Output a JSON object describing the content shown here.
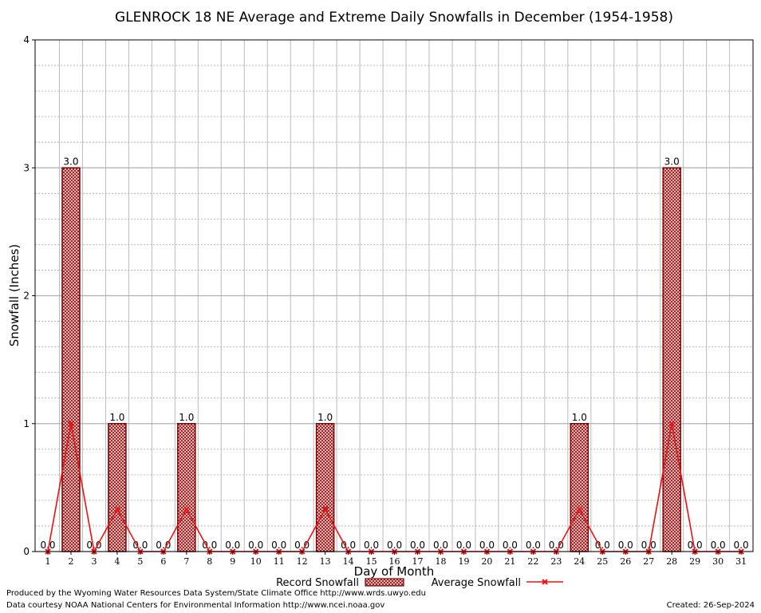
{
  "chart_data": {
    "type": "bar",
    "title": "GLENROCK 18 NE Average and Extreme Daily Snowfalls in December (1954-1958)",
    "xlabel": "Day of Month",
    "ylabel": "Snowfall (Inches)",
    "ylim": [
      0,
      4
    ],
    "yticks": [
      "0",
      "1",
      "2",
      "3",
      "4"
    ],
    "grid": true,
    "legend_position": "bottom",
    "categories": [
      "1",
      "2",
      "3",
      "4",
      "5",
      "6",
      "7",
      "8",
      "9",
      "10",
      "11",
      "12",
      "13",
      "14",
      "15",
      "16",
      "17",
      "18",
      "19",
      "20",
      "21",
      "22",
      "23",
      "24",
      "25",
      "26",
      "27",
      "28",
      "29",
      "30",
      "31"
    ],
    "series": [
      {
        "name": "Record Snowfall",
        "kind": "bar",
        "color": "#800000",
        "values": [
          0,
          3,
          0,
          1,
          0,
          0,
          1,
          0,
          0,
          0,
          0,
          0,
          1,
          0,
          0,
          0,
          0,
          0,
          0,
          0,
          0,
          0,
          0,
          1,
          0,
          0,
          0,
          3,
          0,
          0,
          0
        ],
        "labels": [
          "0.0",
          "3.0",
          "0.0",
          "1.0",
          "0.0",
          "0.0",
          "1.0",
          "0.0",
          "0.0",
          "0.0",
          "0.0",
          "0.0",
          "1.0",
          "0.0",
          "0.0",
          "0.0",
          "0.0",
          "0.0",
          "0.0",
          "0.0",
          "0.0",
          "0.0",
          "0.0",
          "1.0",
          "0.0",
          "0.0",
          "0.0",
          "3.0",
          "0.0",
          "0.0",
          "0.0"
        ]
      },
      {
        "name": "Average Snowfall",
        "kind": "line",
        "color": "#ee1111",
        "values": [
          0,
          1,
          0,
          0.33,
          0,
          0,
          0.33,
          0,
          0,
          0,
          0,
          0,
          0.33,
          0,
          0,
          0,
          0,
          0,
          0,
          0,
          0,
          0,
          0,
          0.33,
          0,
          0,
          0,
          1,
          0,
          0,
          0
        ]
      }
    ]
  },
  "footer": {
    "produced_by": "Produced by the Wyoming Water Resources Data System/State Climate Office http://www.wrds.uwyo.edu",
    "data_courtesy": "Data courtesy NOAA National Centers for Environmental Information http://www.ncei.noaa.gov",
    "created": "Created: 26-Sep-2024"
  }
}
